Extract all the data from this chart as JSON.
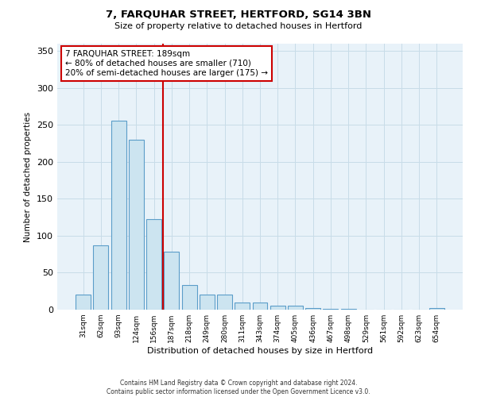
{
  "title": "7, FARQUHAR STREET, HERTFORD, SG14 3BN",
  "subtitle": "Size of property relative to detached houses in Hertford",
  "xlabel": "Distribution of detached houses by size in Hertford",
  "ylabel": "Number of detached properties",
  "bar_labels": [
    "31sqm",
    "62sqm",
    "93sqm",
    "124sqm",
    "156sqm",
    "187sqm",
    "218sqm",
    "249sqm",
    "280sqm",
    "311sqm",
    "343sqm",
    "374sqm",
    "405sqm",
    "436sqm",
    "467sqm",
    "498sqm",
    "529sqm",
    "561sqm",
    "592sqm",
    "623sqm",
    "654sqm"
  ],
  "bar_values": [
    20,
    87,
    256,
    230,
    123,
    78,
    33,
    20,
    20,
    10,
    10,
    5,
    5,
    2,
    1,
    1,
    0,
    0,
    0,
    0,
    2
  ],
  "bar_color": "#cce4f0",
  "bar_edge_color": "#5b9dc9",
  "vline_color": "#cc0000",
  "annotation_title": "7 FARQUHAR STREET: 189sqm",
  "annotation_line1": "← 80% of detached houses are smaller (710)",
  "annotation_line2": "20% of semi-detached houses are larger (175) →",
  "annotation_box_color": "#ffffff",
  "annotation_box_edge_color": "#cc0000",
  "ylim": [
    0,
    360
  ],
  "yticks": [
    0,
    50,
    100,
    150,
    200,
    250,
    300,
    350
  ],
  "footer1": "Contains HM Land Registry data © Crown copyright and database right 2024.",
  "footer2": "Contains public sector information licensed under the Open Government Licence v3.0.",
  "grid_color": "#c8dce8",
  "background_color": "#e8f2f9"
}
